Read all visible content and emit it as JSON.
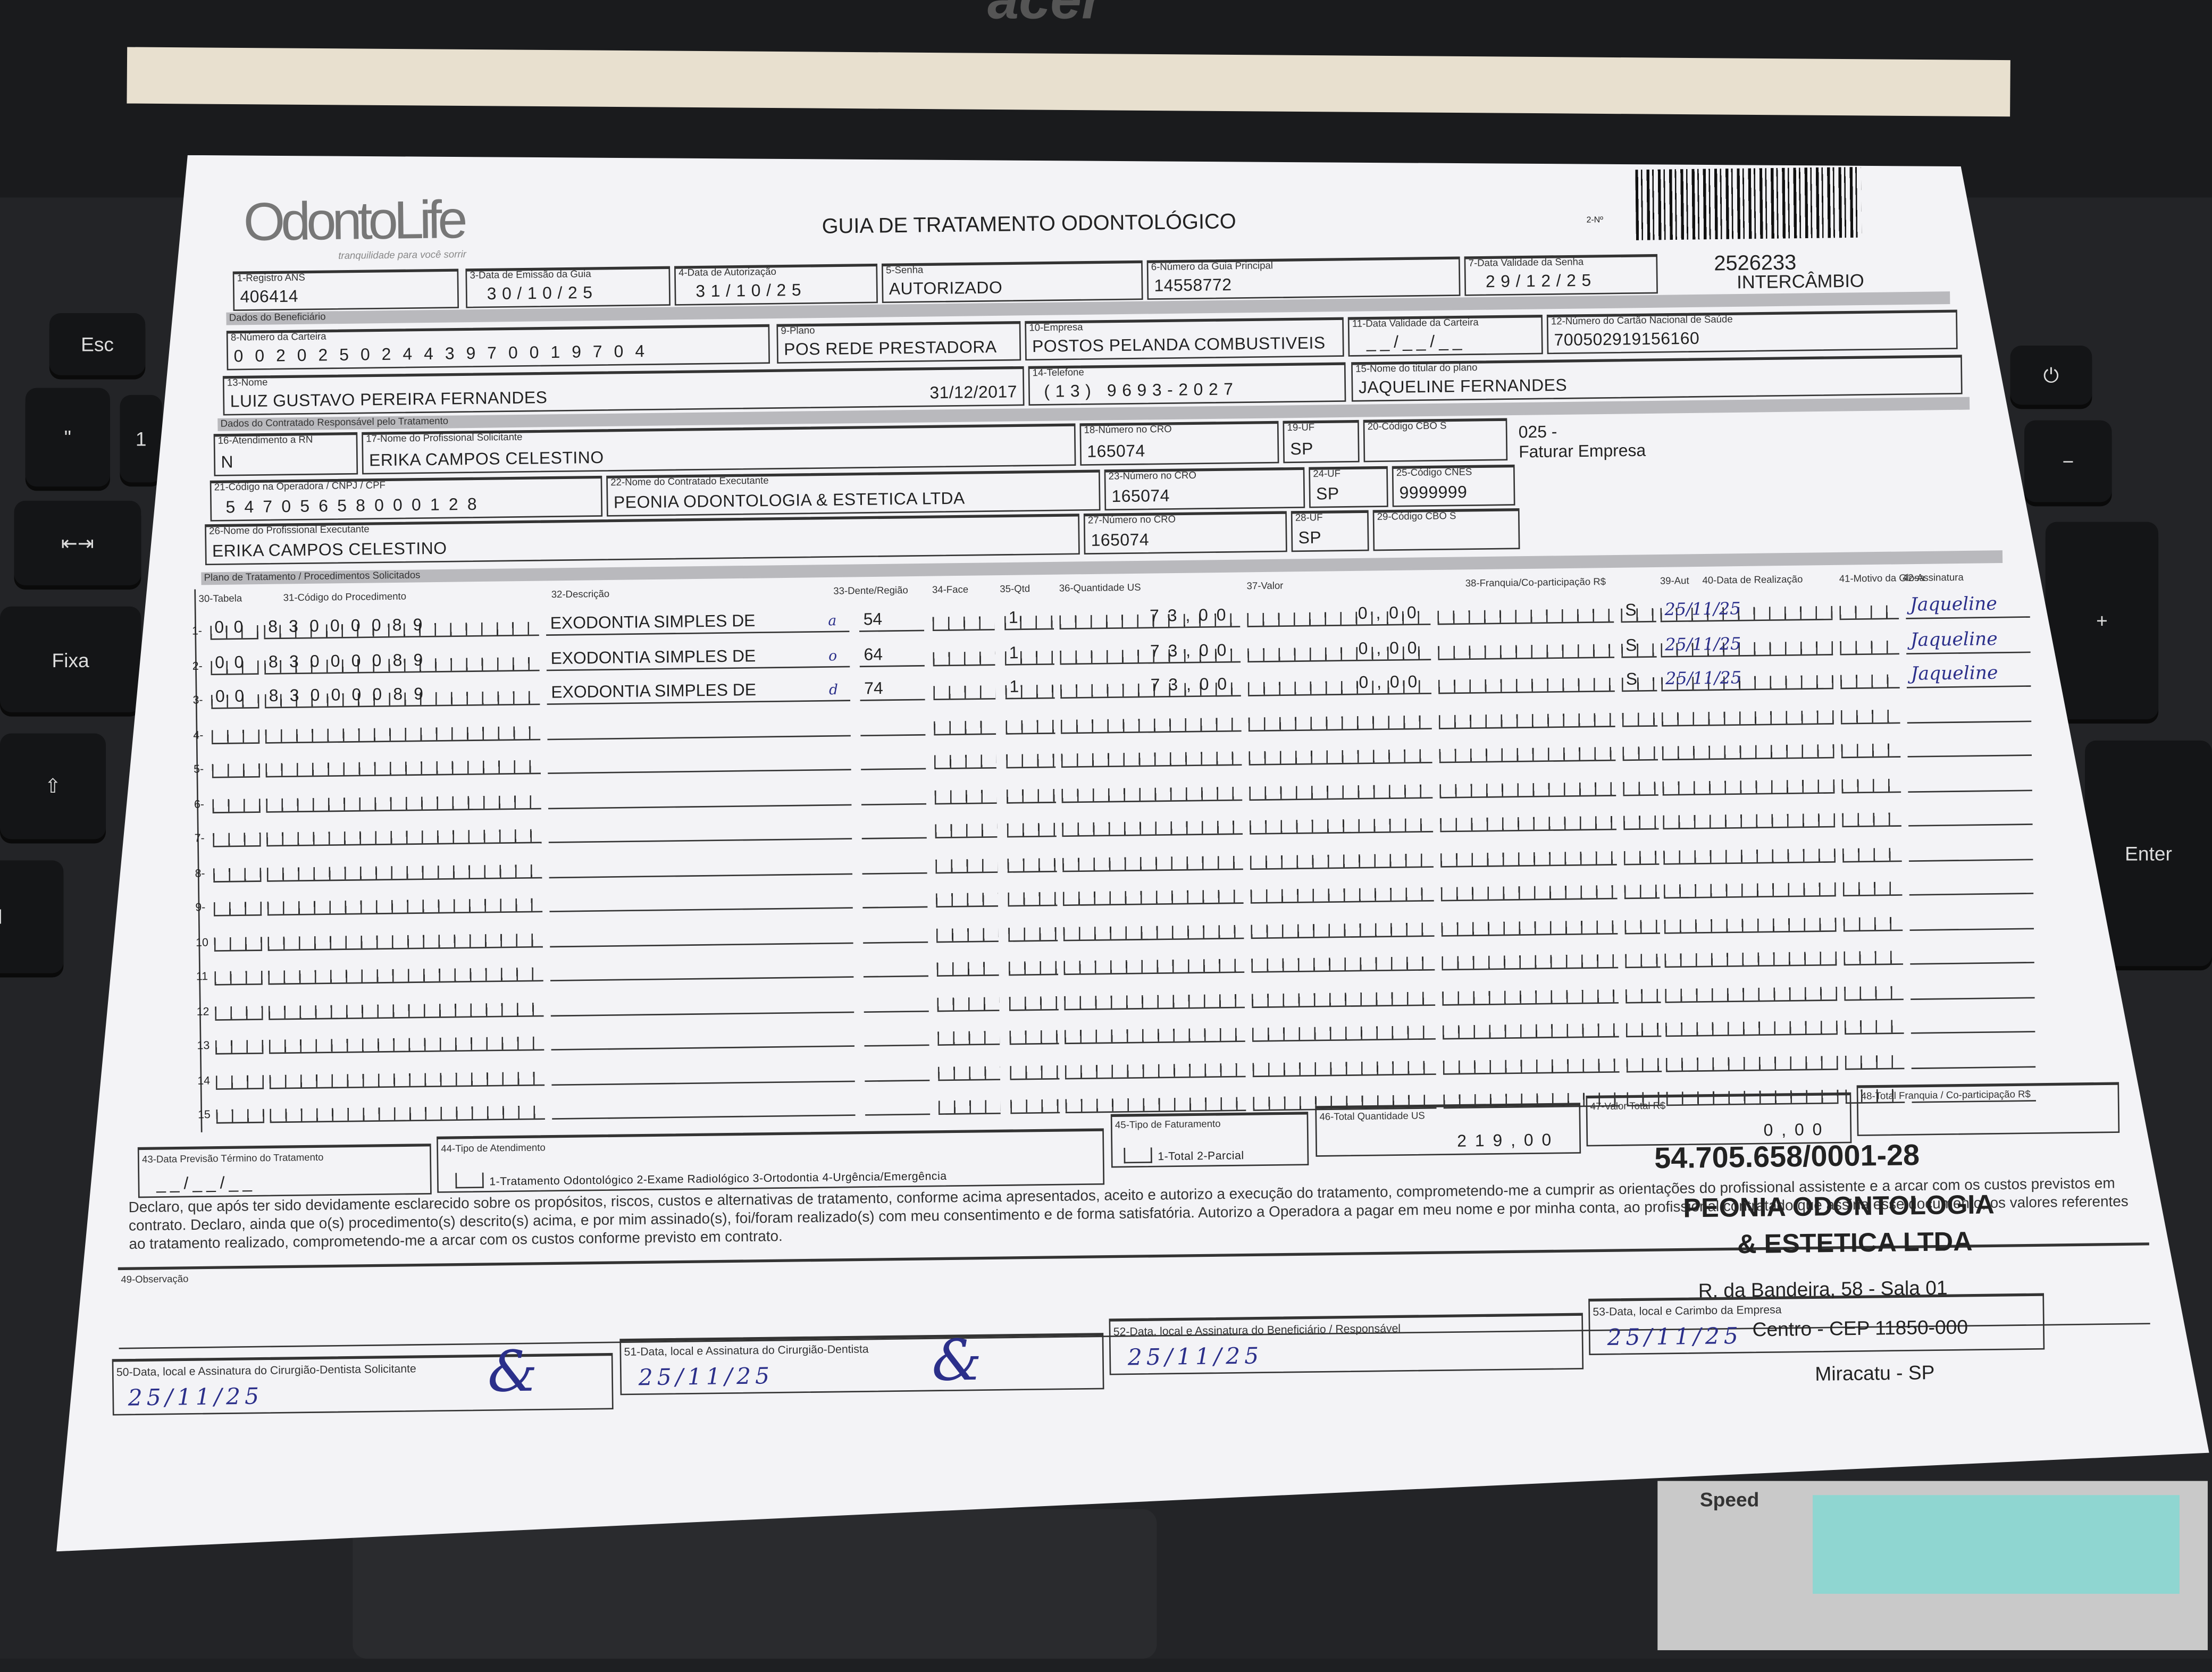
{
  "laptop": {
    "brand": "acer",
    "keys": {
      "esc": "Esc",
      "fixa": "Fixa",
      "enter": "Enter",
      "ctrl": "trl",
      "minus": "−",
      "plus": "+",
      "quote": "\"",
      "exclaim": "!",
      "one": "1",
      "comma": ","
    },
    "sticker": "Speed"
  },
  "header": {
    "logo": "OdontoLife",
    "tagline": "tranquilidade para você sorrir",
    "title": "GUIA DE TRATAMENTO ODONTOLÓGICO",
    "field2_label": "2-Nº",
    "guia_number": "2526233",
    "intercambio": "INTERCÂMBIO"
  },
  "guia": {
    "f1": {
      "label": "1-Registro ANS",
      "value": "406414"
    },
    "f3": {
      "label": "3-Data de Emissão da Guia",
      "value": "30/10/25"
    },
    "f4": {
      "label": "4-Data de Autorização",
      "value": "31/10/25"
    },
    "f5": {
      "label": "5-Senha",
      "value": "AUTORIZADO"
    },
    "f6": {
      "label": "6-Número da Guia Principal",
      "value": "14558772"
    },
    "f7": {
      "label": "7-Data Validade da Senha",
      "value": "29/12/25"
    }
  },
  "beneficiario": {
    "section": "Dados do Beneficiário",
    "f8": {
      "label": "8-Número da Carteira",
      "value": "00202502443970019704"
    },
    "f9": {
      "label": "9-Plano",
      "value": "POS REDE PRESTADORA"
    },
    "f10": {
      "label": "10-Empresa",
      "value": "POSTOS PELANDA COMBUSTIVEIS"
    },
    "f11": {
      "label": "11-Data Validade da Carteira",
      "value": "__/__/__"
    },
    "f12": {
      "label": "12-Número do Cartão Nacional de Saúde",
      "value": "700502919156160"
    },
    "f13": {
      "label": "13-Nome",
      "value": "LUIZ GUSTAVO PEREIRA FERNANDES",
      "date": "31/12/2017"
    },
    "f14": {
      "label": "14-Telefone",
      "value": "(13) 9693-2027"
    },
    "f15": {
      "label": "15-Nome do titular do plano",
      "value": "JAQUELINE FERNANDES"
    }
  },
  "contratado": {
    "section": "Dados do Contratado Responsável pelo Tratamento",
    "f16": {
      "label": "16-Atendimento a RN",
      "value": "N"
    },
    "f17": {
      "label": "17-Nome do Profissional Solicitante",
      "value": "ERIKA CAMPOS CELESTINO"
    },
    "f18": {
      "label": "18-Número no CRO",
      "value": "165074"
    },
    "f19": {
      "label": "19-UF",
      "value": "SP"
    },
    "f20": {
      "label": "20-Código CBO S",
      "value": ""
    },
    "note1": "025 -",
    "note2": "Faturar Empresa",
    "f21": {
      "label": "21-Código na Operadora / CNPJ / CPF",
      "value": "54705658000128"
    },
    "f22": {
      "label": "22-Nome do Contratado Executante",
      "value": "PEONIA ODONTOLOGIA & ESTETICA LTDA"
    },
    "f23": {
      "label": "23-Número no CRO",
      "value": "165074"
    },
    "f24": {
      "label": "24-UF",
      "value": "SP"
    },
    "f25": {
      "label": "25-Código CNES",
      "value": "9999999"
    },
    "f26": {
      "label": "26-Nome do Profissional Executante",
      "value": "ERIKA CAMPOS CELESTINO"
    },
    "f27": {
      "label": "27-Número no CRO",
      "value": "165074"
    },
    "f28": {
      "label": "28-UF",
      "value": "SP"
    },
    "f29": {
      "label": "29-Código CBO S",
      "value": ""
    }
  },
  "plano": {
    "section": "Plano de Tratamento / Procedimentos Solicitados",
    "columns": [
      "30-Tabela",
      "31-Código do Procedimento",
      "32-Descrição",
      "33-Dente/Região",
      "34-Face",
      "35-Qtd",
      "36-Quantidade US",
      "37-Valor",
      "38-Franquia/Co-participação R$",
      "39-Aut",
      "40-Data de Realização",
      "41-Motivo da Glosa",
      "42-Assinatura"
    ],
    "rows": [
      {
        "n": "1-",
        "tabela": "00",
        "codigo": "83000089",
        "descricao": "EXODONTIA SIMPLES DE",
        "mark": "a",
        "dente": "54",
        "face": "",
        "qtd": "1",
        "qtd_us": "73,00",
        "valor": "0,00",
        "franquia": "",
        "aut": "S",
        "data": "25/11/25",
        "glosa": "",
        "assinatura": "Jaqueline"
      },
      {
        "n": "2-",
        "tabela": "00",
        "codigo": "83000089",
        "descricao": "EXODONTIA SIMPLES DE",
        "mark": "o",
        "dente": "64",
        "face": "",
        "qtd": "1",
        "qtd_us": "73,00",
        "valor": "0,00",
        "franquia": "",
        "aut": "S",
        "data": "25/11/25",
        "glosa": "",
        "assinatura": "Jaqueline"
      },
      {
        "n": "3-",
        "tabela": "00",
        "codigo": "83000089",
        "descricao": "EXODONTIA SIMPLES DE",
        "mark": "d",
        "dente": "74",
        "face": "",
        "qtd": "1",
        "qtd_us": "73,00",
        "valor": "0,00",
        "franquia": "",
        "aut": "S",
        "data": "25/11/25",
        "glosa": "",
        "assinatura": "Jaqueline"
      },
      {
        "n": "4-"
      },
      {
        "n": "5-"
      },
      {
        "n": "6-"
      },
      {
        "n": "7-"
      },
      {
        "n": "8-"
      },
      {
        "n": "9-"
      },
      {
        "n": "10"
      },
      {
        "n": "11"
      },
      {
        "n": "12"
      },
      {
        "n": "13"
      },
      {
        "n": "14"
      },
      {
        "n": "15"
      }
    ]
  },
  "totais": {
    "f43": {
      "label": "43-Data Previsão Término do Tratamento",
      "value": "__/__/__"
    },
    "f44": {
      "label": "44-Tipo de Atendimento",
      "options": "1-Tratamento Odontológico  2-Exame Radiológico  3-Ortodontia  4-Urgência/Emergência"
    },
    "f45": {
      "label": "45-Tipo de Faturamento",
      "options": "1-Total  2-Parcial"
    },
    "f46": {
      "label": "46-Total Quantidade US",
      "value": "219,00"
    },
    "f47": {
      "label": "47-Valor Total R$",
      "value": "0,00"
    },
    "f48": {
      "label": "48-Total Franquia / Co-participação R$",
      "value": ""
    }
  },
  "declaracao": "Declaro, que após ter sido devidamente esclarecido sobre os propósitos, riscos, custos e alternativas de tratamento, conforme acima apresentados, aceito e autorizo a execução do tratamento, comprometendo-me a cumprir as orientações do profissional assistente e a arcar com os custos previstos em contrato. Declaro, ainda que o(s) procedimento(s) descrito(s) acima, e por mim assinado(s), foi/foram realizado(s) com meu consentimento e de forma satisfatória. Autorizo a Operadora a pagar em meu nome e por minha conta, ao profissional contratado que assina esse documento, os valores referentes ao tratamento realizado, comprometendo-me a arcar com os custos conforme previsto em contrato.",
  "observacao": {
    "label": "49-Observação",
    "value": ""
  },
  "assinaturas": {
    "f50": {
      "label": "50-Data, local e Assinatura do Cirurgião-Dentista Solicitante",
      "value": "25/11/25"
    },
    "f51": {
      "label": "51-Data, local e Assinatura do Cirurgião-Dentista",
      "value": "25/11/25"
    },
    "f52": {
      "label": "52-Data, local e Assinatura do Beneficiário / Responsável",
      "value": "25/11/25"
    },
    "f53": {
      "label": "53-Data, local e Carimbo da Empresa",
      "value": "25/11/25"
    }
  },
  "carimbo": {
    "cnpj": "54.705.658/0001-28",
    "line1": "PEONIA ODONTOLOGIA",
    "line2": "& ESTETICA LTDA",
    "line3": "R. da Bandeira, 58 - Sala 01",
    "line4": "Centro - CEP 11850-000",
    "line5": "Miracatu - SP"
  }
}
